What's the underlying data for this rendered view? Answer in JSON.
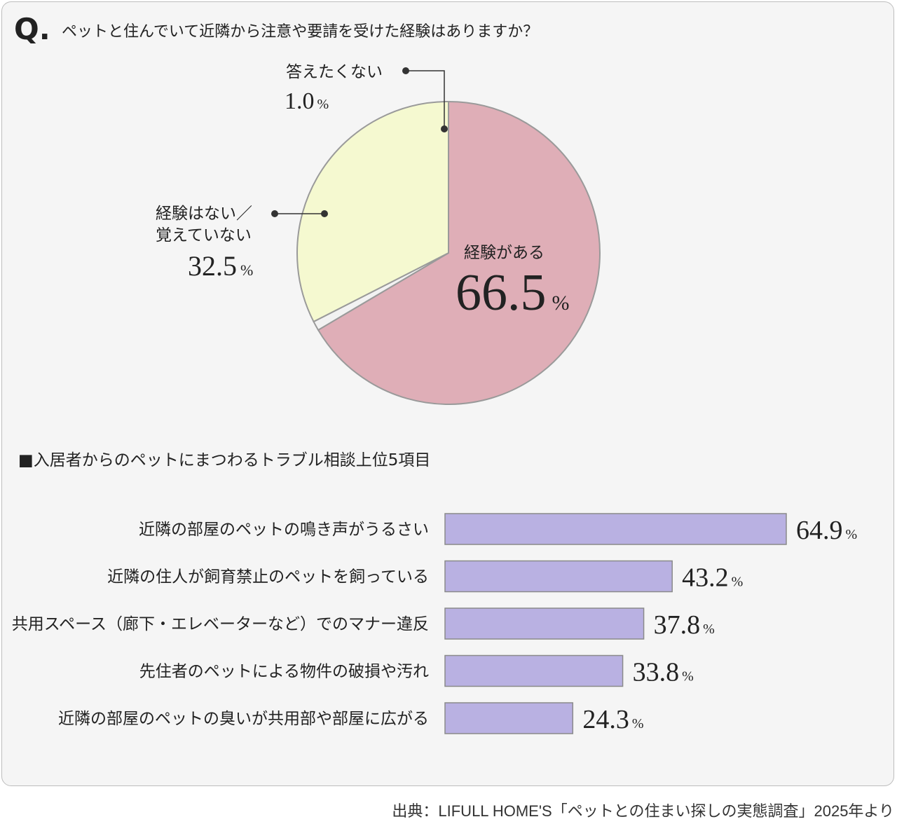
{
  "question": {
    "mark": "Q.",
    "text": "ペットと住んでいて近隣から注意や要請を受けた経験はありますか？"
  },
  "pie": {
    "type": "pie",
    "slices": [
      {
        "label": "経験がある",
        "value": 66.5,
        "value_text": "66.5",
        "color": "#dfaeb7"
      },
      {
        "label": "答えたくない",
        "value": 1.0,
        "value_text": "1.0",
        "color": "#f2f2f2"
      },
      {
        "label_lines": [
          "経験はない／",
          "覚えていない"
        ],
        "value": 32.5,
        "value_text": "32.5",
        "color": "#f5f9d0"
      }
    ],
    "unit": "%"
  },
  "bars": {
    "type": "bar",
    "title": "■入居者からのペットにまつわるトラブル相談上位5項目",
    "categories": [
      "近隣の部屋のペットの鳴き声がうるさい",
      "近隣の住人が飼育禁止のペットを飼っている",
      "共用スペース（廊下・エレベーターなど）でのマナー違反",
      "先住者のペットによる物件の破損や汚れ",
      "近隣の部屋のペットの臭いが共用部や部屋に広がる"
    ],
    "values": [
      64.9,
      43.2,
      37.8,
      33.8,
      24.3
    ],
    "value_texts": [
      "64.9",
      "43.2",
      "37.8",
      "33.8",
      "24.3"
    ],
    "unit": "%",
    "color": "#b9b1e2",
    "ylim": [
      0,
      100
    ]
  },
  "chart_data": [
    {
      "type": "pie",
      "title": "ペットと住んでいて近隣から注意や要請を受けた経験はありますか？",
      "categories": [
        "経験がある",
        "答えたくない",
        "経験はない／覚えていない"
      ],
      "values": [
        66.5,
        1.0,
        32.5
      ],
      "unit": "%"
    },
    {
      "type": "bar",
      "title": "■入居者からのペットにまつわるトラブル相談上位5項目",
      "categories": [
        "近隣の部屋のペットの鳴き声がうるさい",
        "近隣の住人が飼育禁止のペットを飼っている",
        "共用スペース（廊下・エレベーターなど）でのマナー違反",
        "先住者のペットによる物件の破損や汚れ",
        "近隣の部屋のペットの臭いが共用部や部屋に広がる"
      ],
      "values": [
        64.9,
        43.2,
        37.8,
        33.8,
        24.3
      ],
      "unit": "%",
      "orientation": "horizontal"
    }
  ],
  "source": "出典：LIFULL HOME'S「ペットとの住まい探しの実態調査」2025年より"
}
